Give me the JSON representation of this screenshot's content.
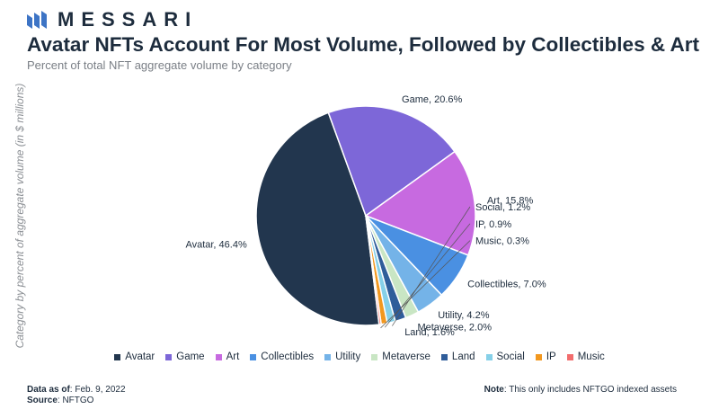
{
  "brand": {
    "name": "MESSARI"
  },
  "header": {
    "title": "Avatar NFTs Account For Most Volume, Followed by Collectibles & Art",
    "subtitle": "Percent of total NFT aggregate volume by category"
  },
  "footer": {
    "data_as_of_label": "Data as of",
    "data_as_of_value": ": Feb. 9, 2022",
    "source_label": "Source",
    "source_value": ": NFTGO",
    "note_label": "Note",
    "note_value": ": This only includes NFTGO indexed assets"
  },
  "chart_data": {
    "type": "pie",
    "title": "Avatar NFTs Account For Most Volume, Followed by Collectibles & Art",
    "subtitle": "Percent of total NFT aggregate volume by category",
    "ylabel": "Category by percent of aggregate volume (in $ millions)",
    "legend_position": "bottom",
    "categories": [
      "Avatar",
      "Game",
      "Art",
      "Collectibles",
      "Utility",
      "Metaverse",
      "Land",
      "Social",
      "IP",
      "Music"
    ],
    "values": [
      46.4,
      20.6,
      15.8,
      7.0,
      4.2,
      2.0,
      1.6,
      1.2,
      0.9,
      0.3
    ],
    "labels": [
      "Avatar, 46.4%",
      "Game, 20.6%",
      "Art, 15.8%",
      "Collectibles, 7.0%",
      "Utility, 4.2%",
      "Metaverse, 2.0%",
      "Land, 1.6%",
      "Social, 1.2%",
      "IP, 0.9%",
      "Music, 0.3%"
    ],
    "colors": [
      "#22364e",
      "#7d67d8",
      "#c76ae0",
      "#4a90e2",
      "#74b3e8",
      "#c9e6c4",
      "#2f5d9a",
      "#86d0e8",
      "#f2981f",
      "#f26d6d"
    ]
  }
}
